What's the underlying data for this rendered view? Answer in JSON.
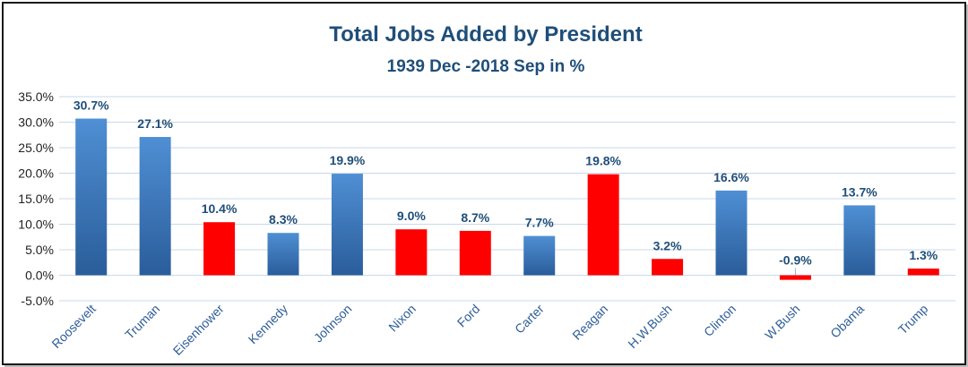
{
  "chart_data": {
    "type": "bar",
    "title": "Total Jobs Added by President",
    "subtitle": "1939 Dec -2018 Sep in %",
    "categories": [
      "Roosevelt",
      "Truman",
      "Eisenhower",
      "Kennedy",
      "Johnson",
      "Nixon",
      "Ford",
      "Carter",
      "Reagan",
      "H.W.Bush",
      "Clinton",
      "W.Bush",
      "Obama",
      "Trump"
    ],
    "values": [
      30.7,
      27.1,
      10.4,
      8.3,
      19.9,
      9.0,
      8.7,
      7.7,
      19.8,
      3.2,
      16.6,
      -0.9,
      13.7,
      1.3
    ],
    "data_labels": [
      "30.7%",
      "27.1%",
      "10.4%",
      "8.3%",
      "19.9%",
      "9.0%",
      "8.7%",
      "7.7%",
      "19.8%",
      "3.2%",
      "16.6%",
      "-0.9%",
      "13.7%",
      "1.3%"
    ],
    "bar_colors": [
      "blue",
      "blue",
      "red",
      "blue",
      "blue",
      "red",
      "red",
      "blue",
      "red",
      "red",
      "blue",
      "red",
      "blue",
      "red"
    ],
    "colors": {
      "blue": "#3a75b7",
      "red": "#ff0000"
    },
    "ylim": [
      -5,
      35
    ],
    "yticks": [
      -5,
      0,
      5,
      10,
      15,
      20,
      25,
      30,
      35
    ],
    "ytick_labels": [
      "-5.0%",
      "0.0%",
      "5.0%",
      "10.0%",
      "15.0%",
      "20.0%",
      "25.0%",
      "30.0%",
      "35.0%"
    ],
    "grid": true,
    "legend": "none"
  }
}
